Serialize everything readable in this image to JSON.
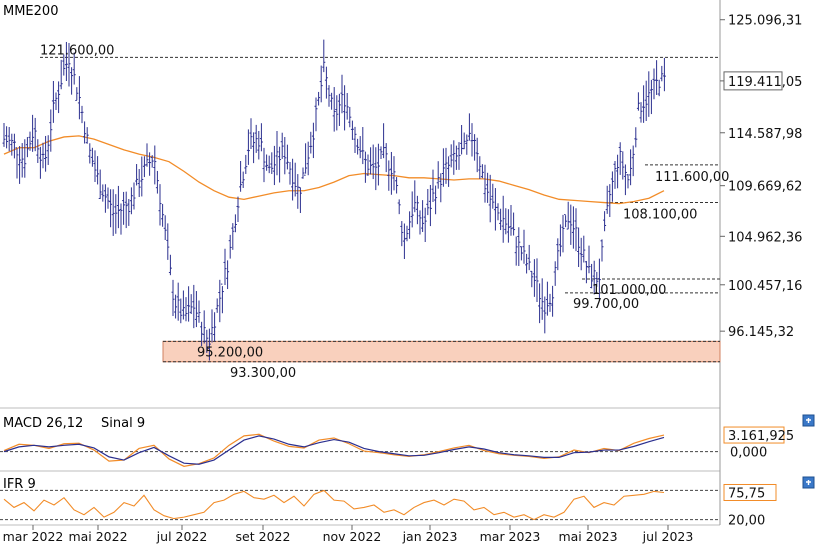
{
  "colors": {
    "price": "#2b2f8f",
    "mme": "#f28c28",
    "macd": "#f28c28",
    "signal": "#2b2f8f",
    "ifr": "#f28c28",
    "zone_fill": "#f9d0bd",
    "zone_stroke": "#d08060",
    "axis": "#555555"
  },
  "chart_data": [
    {
      "type": "line",
      "title": "MME200",
      "series": [
        {
          "name": "MME200",
          "x": [
            0,
            15,
            30,
            45,
            60,
            75,
            90,
            105,
            120,
            135,
            150,
            165,
            180,
            195,
            210,
            225,
            240,
            255,
            270,
            285,
            300,
            315,
            330,
            345,
            360,
            375,
            390,
            405,
            420,
            435,
            450,
            465,
            480,
            495,
            510,
            525,
            540,
            555,
            570,
            585,
            600,
            615,
            630,
            645,
            660
          ],
          "values": [
            112.6,
            113.2,
            113.2,
            113.8,
            114.2,
            114.3,
            114.0,
            113.5,
            113.0,
            112.6,
            112.3,
            111.9,
            111.0,
            110.0,
            109.2,
            108.6,
            108.4,
            108.7,
            109.0,
            109.2,
            109.2,
            109.5,
            110.0,
            110.6,
            110.8,
            110.7,
            110.6,
            110.4,
            110.4,
            110.3,
            110.2,
            110.3,
            110.3,
            110.1,
            109.7,
            109.3,
            108.8,
            108.4,
            108.3,
            108.2,
            108.1,
            108.0,
            108.2,
            108.5,
            109.2
          ]
        },
        {
          "name": "",
          "x": [
            0,
            10,
            20,
            30,
            40,
            50,
            60,
            65,
            75,
            85,
            95,
            110,
            125,
            140,
            150,
            160,
            170,
            180,
            190,
            200,
            205,
            215,
            225,
            235,
            245,
            255,
            265,
            280,
            295,
            310,
            320,
            330,
            340,
            350,
            360,
            370,
            380,
            390,
            400,
            410,
            420,
            430,
            440,
            450,
            460,
            470,
            480,
            490,
            500,
            510,
            520,
            530,
            540,
            548,
            555,
            565,
            575,
            585,
            595,
            605,
            615,
            625,
            635,
            645,
            655,
            662
          ],
          "values": [
            114,
            113.5,
            112,
            115,
            111.5,
            117,
            120.5,
            121.6,
            118,
            113,
            110,
            107,
            108,
            111,
            112.5,
            106,
            99,
            97.5,
            98.5,
            96,
            95.2,
            99,
            103,
            109,
            113.5,
            114,
            111,
            113,
            109,
            115,
            120.5,
            116,
            118,
            115,
            112,
            111,
            112.5,
            111,
            104.5,
            108,
            106,
            109,
            111,
            112,
            113,
            114.5,
            110,
            107.5,
            106.5,
            105,
            103,
            101,
            98.5,
            99.7,
            103.5,
            107,
            104.5,
            101.5,
            101,
            108.5,
            112.5,
            110,
            117,
            118,
            119.5,
            119.4
          ]
        }
      ],
      "ylim": [
        93.0,
        126.0
      ],
      "yticks": [
        "125.096,31",
        "119.411,05",
        "114.587,98",
        "109.669,62",
        "104.962,36",
        "100.457,16",
        "96.145,32"
      ],
      "annotations": [
        {
          "label": "121.600,00",
          "value": 121.6
        },
        {
          "label": "111.600,00",
          "value": 111.6
        },
        {
          "label": "108.100,00",
          "value": 108.1
        },
        {
          "label": "101.000,00",
          "value": 101.0
        },
        {
          "label": "99.700,00",
          "value": 99.7
        },
        {
          "label": "95.200,00",
          "value": 95.2
        },
        {
          "label": "93.300,00",
          "value": 93.3
        }
      ],
      "zone": [
        93.3,
        95.2
      ],
      "last_value": 119.41
    },
    {
      "type": "line",
      "title_macd": "MACD 26,12",
      "title_signal": "Sinal 9",
      "series": [
        {
          "name": "MACD 26,12",
          "x": [
            0,
            15,
            30,
            45,
            60,
            75,
            90,
            105,
            120,
            135,
            150,
            165,
            180,
            195,
            210,
            225,
            240,
            255,
            270,
            285,
            300,
            315,
            330,
            345,
            360,
            375,
            390,
            405,
            420,
            435,
            450,
            465,
            480,
            495,
            510,
            525,
            540,
            555,
            570,
            585,
            600,
            615,
            630,
            645,
            660
          ],
          "values": [
            0.2,
            1.4,
            1.2,
            0.6,
            1.5,
            1.6,
            0.3,
            -1.8,
            -1.6,
            0.6,
            1.2,
            -1.4,
            -2.8,
            -2.3,
            -1.2,
            1.2,
            3.0,
            3.3,
            2.0,
            1.0,
            0.7,
            2.2,
            2.6,
            1.5,
            0.1,
            -0.2,
            -0.6,
            -0.9,
            -0.6,
            0.0,
            0.7,
            1.2,
            0.2,
            -0.4,
            -0.7,
            -0.9,
            -1.3,
            -1.0,
            0.3,
            -0.2,
            0.6,
            0.2,
            1.6,
            2.5,
            3.16
          ]
        },
        {
          "name": "Sinal 9",
          "x": [
            0,
            15,
            30,
            45,
            60,
            75,
            90,
            105,
            120,
            135,
            150,
            165,
            180,
            195,
            210,
            225,
            240,
            255,
            270,
            285,
            300,
            315,
            330,
            345,
            360,
            375,
            390,
            405,
            420,
            435,
            450,
            465,
            480,
            495,
            510,
            525,
            540,
            555,
            570,
            585,
            600,
            615,
            630,
            645,
            660
          ],
          "values": [
            0.0,
            0.9,
            1.2,
            0.9,
            1.2,
            1.4,
            0.7,
            -1.0,
            -1.6,
            -0.2,
            0.8,
            -0.8,
            -2.2,
            -2.4,
            -1.6,
            0.3,
            2.2,
            3.0,
            2.4,
            1.4,
            0.9,
            1.7,
            2.3,
            1.8,
            0.6,
            0.0,
            -0.4,
            -0.8,
            -0.7,
            -0.2,
            0.4,
            0.9,
            0.5,
            -0.2,
            -0.6,
            -0.8,
            -1.1,
            -1.1,
            -0.2,
            -0.1,
            0.3,
            0.3,
            1.0,
            1.9,
            2.7
          ]
        }
      ],
      "ylim": [
        -3.5,
        4.5
      ],
      "yticks": [
        "0,000"
      ],
      "last_value": "3.161,925"
    },
    {
      "type": "line",
      "title": "IFR 9",
      "series": [
        {
          "name": "IFR 9",
          "x": [
            0,
            10,
            20,
            30,
            40,
            50,
            60,
            70,
            80,
            90,
            100,
            110,
            120,
            130,
            140,
            150,
            160,
            170,
            180,
            190,
            200,
            210,
            220,
            230,
            240,
            250,
            260,
            270,
            280,
            290,
            300,
            310,
            320,
            330,
            340,
            350,
            360,
            370,
            380,
            390,
            400,
            410,
            420,
            430,
            440,
            450,
            460,
            470,
            480,
            490,
            500,
            510,
            520,
            530,
            540,
            550,
            560,
            570,
            580,
            590,
            600,
            610,
            620,
            630,
            640,
            650,
            660
          ],
          "values": [
            62,
            45,
            55,
            38,
            60,
            50,
            65,
            40,
            30,
            45,
            25,
            35,
            55,
            48,
            70,
            40,
            28,
            22,
            25,
            30,
            35,
            55,
            60,
            72,
            78,
            65,
            62,
            70,
            55,
            68,
            48,
            72,
            80,
            60,
            58,
            42,
            45,
            50,
            35,
            40,
            30,
            45,
            55,
            60,
            50,
            62,
            58,
            40,
            45,
            30,
            35,
            25,
            30,
            20,
            30,
            25,
            35,
            62,
            68,
            45,
            55,
            50,
            68,
            70,
            72,
            78,
            75.75
          ]
        }
      ],
      "ylim": [
        15,
        85
      ],
      "yticks": [
        "20,00"
      ],
      "ref_levels": [
        20,
        80
      ],
      "last_value": "75,75"
    }
  ],
  "x_axis": {
    "labels": [
      "mar 2022",
      "mai 2022",
      "jul 2022",
      "set 2022",
      "nov 2022",
      "jan 2023",
      "mar 2023",
      "mai 2023",
      "jul 2023"
    ]
  }
}
